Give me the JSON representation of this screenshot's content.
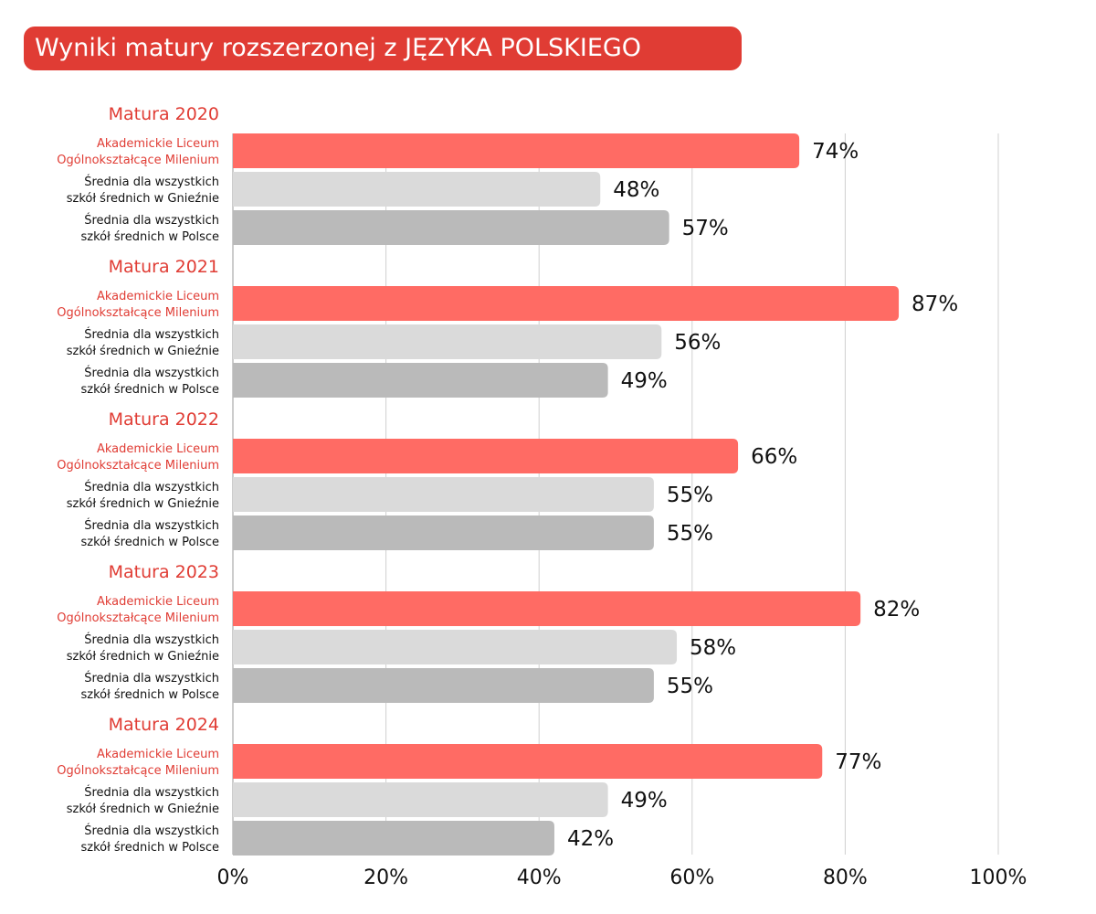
{
  "chart_data": {
    "type": "bar",
    "orientation": "horizontal",
    "title": "Wyniki matury rozszerzonej z JĘZYKA POLSKIEGO",
    "xlim": [
      0,
      100
    ],
    "x_ticks": [
      "0%",
      "20%",
      "40%",
      "60%",
      "80%",
      "100%"
    ],
    "grid": true,
    "categories": [
      [
        "Akademickie Liceum",
        "Ogólnokształcące Milenium"
      ],
      [
        "Średnia dla wszystkich",
        "szkół średnich w Gnieźnie"
      ],
      [
        "Średnia dla wszystkich",
        "szkół średnich w Polsce"
      ]
    ],
    "colors": [
      "#ff6b64",
      "#dadada",
      "#bababa"
    ],
    "label_colors": [
      "#e03c34",
      "#111111",
      "#111111"
    ],
    "groups": [
      {
        "name": "Matura 2020",
        "values": [
          74,
          48,
          57
        ]
      },
      {
        "name": "Matura 2021",
        "values": [
          87,
          56,
          49
        ]
      },
      {
        "name": "Matura 2022",
        "values": [
          66,
          55,
          55
        ]
      },
      {
        "name": "Matura 2023",
        "values": [
          82,
          58,
          55
        ]
      },
      {
        "name": "Matura 2024",
        "values": [
          77,
          49,
          42
        ]
      }
    ]
  }
}
